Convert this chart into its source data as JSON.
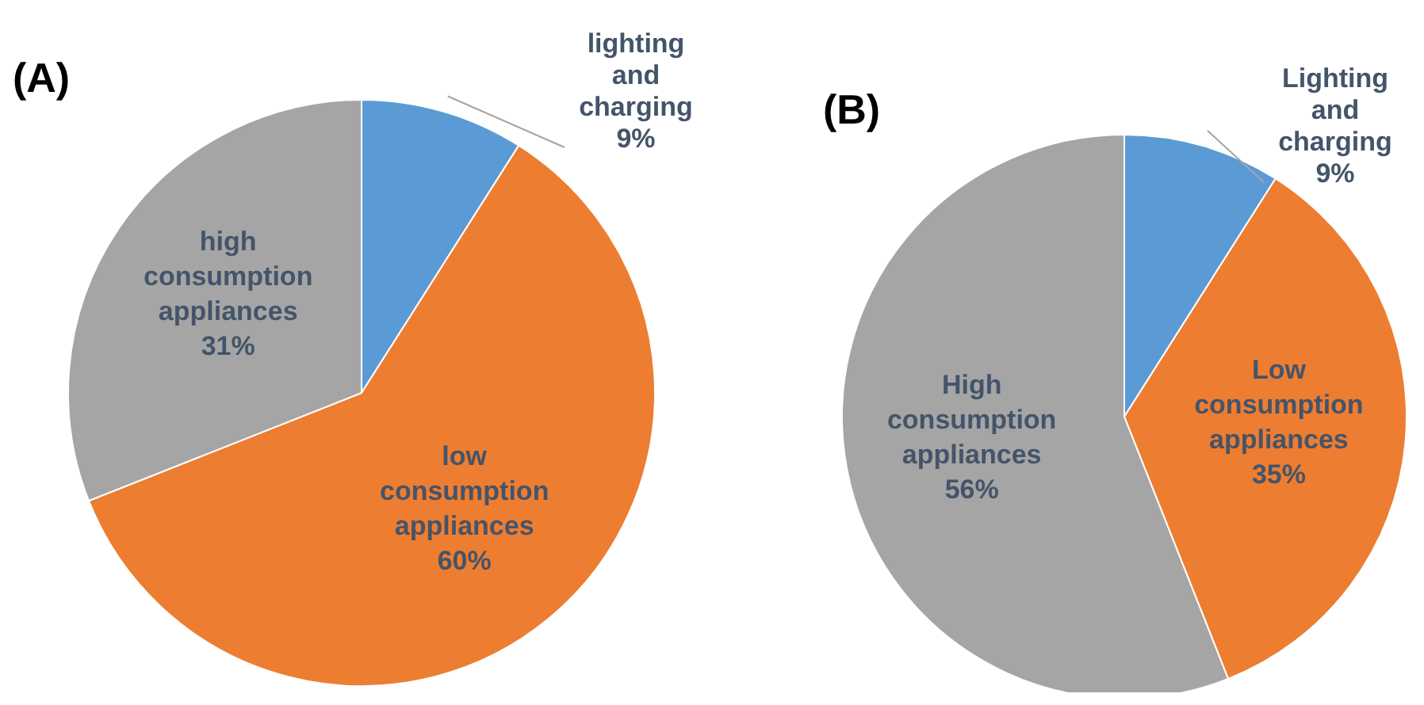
{
  "chart_data": [
    {
      "type": "pie",
      "title": "(A)",
      "categories": [
        "lighting and charging",
        "low consumption appliances",
        "high consumption appliances"
      ],
      "values": [
        9,
        60,
        31
      ],
      "colors": [
        "#5b9bd5",
        "#ed7d31",
        "#a5a5a5"
      ],
      "value_labels": [
        "9%",
        "60%",
        "31%"
      ],
      "legend": false
    },
    {
      "type": "pie",
      "title": "(B)",
      "categories": [
        "Lighting and charging",
        "Low consumption appliances",
        "High consumption appliances"
      ],
      "values": [
        9,
        35,
        56
      ],
      "colors": [
        "#5b9bd5",
        "#ed7d31",
        "#a5a5a5"
      ],
      "value_labels": [
        "9%",
        "35%",
        "56%"
      ],
      "legend": false
    }
  ]
}
